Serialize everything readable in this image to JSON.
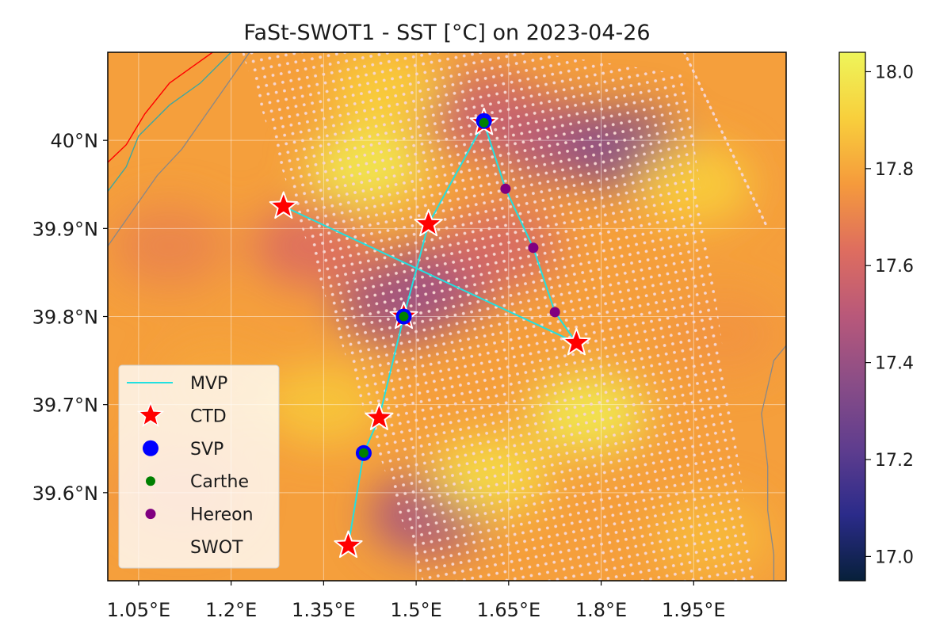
{
  "title": "FaSt-SWOT1 - SST [°C] on 2023-04-26",
  "extent": {
    "lon": [
      1.0,
      2.1
    ],
    "lat": [
      39.5,
      40.1
    ]
  },
  "x_ticks": [
    {
      "lon": 1.05,
      "label": "1.05°E"
    },
    {
      "lon": 1.2,
      "label": "1.2°E"
    },
    {
      "lon": 1.35,
      "label": "1.35°E"
    },
    {
      "lon": 1.5,
      "label": "1.5°E"
    },
    {
      "lon": 1.65,
      "label": "1.65°E"
    },
    {
      "lon": 1.8,
      "label": "1.8°E"
    },
    {
      "lon": 1.95,
      "label": "1.95°E"
    }
  ],
  "y_ticks": [
    {
      "lat": 40.0,
      "label": "40°N"
    },
    {
      "lat": 39.9,
      "label": "39.9°N"
    },
    {
      "lat": 39.8,
      "label": "39.8°N"
    },
    {
      "lat": 39.7,
      "label": "39.7°N"
    },
    {
      "lat": 39.6,
      "label": "39.6°N"
    }
  ],
  "colorbar": {
    "range": [
      16.95,
      18.04
    ],
    "ticks": [
      {
        "value": 17.0,
        "label": "17.0"
      },
      {
        "value": 17.2,
        "label": "17.2"
      },
      {
        "value": 17.4,
        "label": "17.4"
      },
      {
        "value": 17.6,
        "label": "17.6"
      },
      {
        "value": 17.8,
        "label": "17.8"
      },
      {
        "value": 18.0,
        "label": "18.0"
      }
    ],
    "colormap": [
      "#07203a",
      "#2b2b8a",
      "#5f3d8e",
      "#8a4d87",
      "#b8587a",
      "#de6d5f",
      "#f59a3c",
      "#f8cf3c",
      "#eef55a"
    ]
  },
  "swot_swath": {
    "polygon": [
      [
        1.215,
        40.105
      ],
      [
        1.64,
        40.105
      ],
      [
        1.935,
        40.075
      ],
      [
        2.05,
        39.5
      ],
      [
        1.51,
        39.5
      ]
    ],
    "nadir_line": [
      [
        1.935,
        40.1
      ],
      [
        2.07,
        39.9
      ]
    ]
  },
  "sst_features": [
    {
      "lon": 1.54,
      "lat": 39.84,
      "value": 17.45
    },
    {
      "lon": 1.47,
      "lat": 39.815,
      "value": 17.42
    },
    {
      "lon": 1.72,
      "lat": 40.0,
      "value": 17.45
    },
    {
      "lon": 1.84,
      "lat": 39.99,
      "value": 17.35
    },
    {
      "lon": 1.61,
      "lat": 40.03,
      "value": 17.55
    },
    {
      "lon": 1.33,
      "lat": 39.88,
      "value": 17.62
    },
    {
      "lon": 1.52,
      "lat": 39.575,
      "value": 17.45
    },
    {
      "lon": 1.64,
      "lat": 39.88,
      "value": 17.6
    },
    {
      "lon": 1.45,
      "lat": 40.06,
      "value": 17.9
    },
    {
      "lon": 1.78,
      "lat": 39.69,
      "value": 18.0
    },
    {
      "lon": 1.62,
      "lat": 39.62,
      "value": 17.95
    },
    {
      "lon": 1.1,
      "lat": 39.88,
      "value": 17.7
    },
    {
      "lon": 1.18,
      "lat": 39.72,
      "value": 17.8
    },
    {
      "lon": 1.12,
      "lat": 39.6,
      "value": 17.72
    },
    {
      "lon": 2.0,
      "lat": 39.78,
      "value": 17.75
    },
    {
      "lon": 1.98,
      "lat": 39.55,
      "value": 17.85
    },
    {
      "lon": 1.95,
      "lat": 39.95,
      "value": 17.9
    },
    {
      "lon": 1.42,
      "lat": 39.97,
      "value": 18.0
    },
    {
      "lon": 1.35,
      "lat": 39.7,
      "value": 17.88
    }
  ],
  "mvp_tracks": [
    [
      [
        1.285,
        39.925
      ],
      [
        1.76,
        39.77
      ]
    ],
    [
      [
        1.61,
        40.02
      ],
      [
        1.52,
        39.905
      ],
      [
        1.48,
        39.8
      ],
      [
        1.44,
        39.685
      ],
      [
        1.415,
        39.645
      ],
      [
        1.39,
        39.54
      ]
    ],
    [
      [
        1.61,
        40.02
      ],
      [
        1.645,
        39.945
      ],
      [
        1.69,
        39.878
      ],
      [
        1.725,
        39.805
      ],
      [
        1.76,
        39.77
      ]
    ]
  ],
  "ctd": [
    [
      1.285,
      39.925
    ],
    [
      1.52,
      39.905
    ],
    [
      1.61,
      40.02
    ],
    [
      1.48,
      39.8
    ],
    [
      1.76,
      39.77
    ],
    [
      1.44,
      39.685
    ],
    [
      1.39,
      39.54
    ]
  ],
  "svp": [
    [
      1.61,
      40.022
    ],
    [
      1.48,
      39.8
    ],
    [
      1.415,
      39.645
    ]
  ],
  "carthe": [
    [
      1.61,
      40.02
    ],
    [
      1.48,
      39.8
    ],
    [
      1.415,
      39.645
    ]
  ],
  "hereon": [
    [
      1.645,
      39.945
    ],
    [
      1.69,
      39.878
    ],
    [
      1.725,
      39.805
    ]
  ],
  "coast": {
    "red": [
      [
        1.0,
        39.975
      ],
      [
        1.03,
        39.995
      ],
      [
        1.06,
        40.03
      ],
      [
        1.1,
        40.065
      ],
      [
        1.14,
        40.085
      ],
      [
        1.17,
        40.1
      ]
    ],
    "teal": [
      [
        1.0,
        39.942
      ],
      [
        1.03,
        39.97
      ],
      [
        1.05,
        40.005
      ],
      [
        1.1,
        40.04
      ],
      [
        1.15,
        40.065
      ],
      [
        1.2,
        40.1
      ]
    ],
    "gray_nw": [
      [
        1.0,
        39.88
      ],
      [
        1.04,
        39.92
      ],
      [
        1.08,
        39.96
      ],
      [
        1.12,
        39.99
      ],
      [
        1.16,
        40.03
      ],
      [
        1.21,
        40.08
      ],
      [
        1.23,
        40.1
      ]
    ],
    "gray_se": [
      [
        2.1,
        39.767
      ],
      [
        2.08,
        39.75
      ],
      [
        2.07,
        39.72
      ],
      [
        2.06,
        39.69
      ],
      [
        2.07,
        39.63
      ],
      [
        2.07,
        39.58
      ],
      [
        2.08,
        39.53
      ],
      [
        2.08,
        39.5
      ]
    ]
  },
  "legend": [
    {
      "key": "mvp",
      "label": "MVP"
    },
    {
      "key": "ctd",
      "label": "CTD"
    },
    {
      "key": "svp",
      "label": "SVP"
    },
    {
      "key": "carthe",
      "label": "Carthe"
    },
    {
      "key": "hereon",
      "label": "Hereon"
    },
    {
      "key": "swot",
      "label": "SWOT"
    }
  ],
  "colors": {
    "mvp": "#22e0e0",
    "ctd": "#ff0000",
    "svp": "#0000ff",
    "carthe": "#008000",
    "hereon": "#800080",
    "swot_dots": "#f5d5d0",
    "coast_red": "#ff0000",
    "coast_teal": "#3fa7a0",
    "coast_gray": "#888888"
  }
}
